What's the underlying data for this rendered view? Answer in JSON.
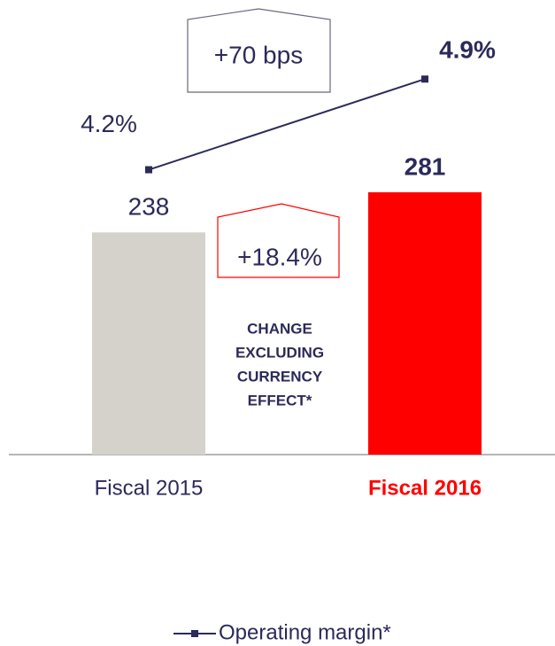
{
  "chart_data": {
    "type": "bar",
    "categories": [
      "Fiscal 2015",
      "Fiscal 2016"
    ],
    "category_colors": [
      "#2b2a5a",
      "#ff0000"
    ],
    "ylim": [
      0,
      430
    ],
    "y2lim": [
      2,
      5.1
    ],
    "series": [
      {
        "type": "bar",
        "values": [
          238,
          281
        ],
        "colors": [
          "#d5d2cc",
          "#ff0000"
        ]
      },
      {
        "type": "line",
        "name": "Operating margin*",
        "axis": "y2",
        "color": "#2b2a5a",
        "values": [
          4.2,
          4.9
        ],
        "value_labels": [
          "4.2%",
          "4.9%"
        ]
      }
    ],
    "annotations": [
      "+70 bps",
      "+18.4%"
    ],
    "note": [
      "CHANGE",
      "EXCLUDING",
      "CURRENCY",
      "EFFECT*"
    ]
  }
}
